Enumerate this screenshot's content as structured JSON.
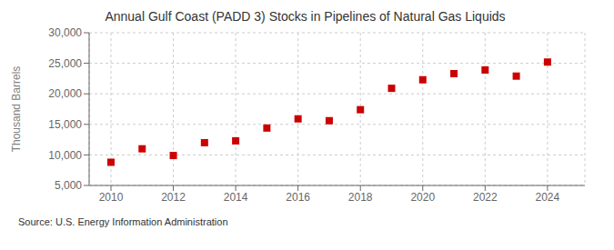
{
  "chart_data": {
    "type": "scatter",
    "title": "Annual Gulf Coast (PADD 3) Stocks in Pipelines of Natural Gas Liquids",
    "ylabel": "Thousand Barrels",
    "annotations": [
      "Source: U.S. Energy Information Administration"
    ],
    "x": [
      2010,
      2011,
      2012,
      2013,
      2014,
      2015,
      2016,
      2017,
      2018,
      2019,
      2020,
      2021,
      2022,
      2023,
      2024
    ],
    "values": [
      8800,
      11000,
      9900,
      12000,
      12300,
      14400,
      15900,
      15600,
      17400,
      20900,
      22300,
      23300,
      23900,
      22900,
      25200
    ],
    "color": "#cc0000",
    "marker": "square",
    "xlim": [
      2009.3,
      2025.2
    ],
    "xticks": [
      2010,
      2012,
      2014,
      2016,
      2018,
      2020,
      2022,
      2024
    ],
    "ylim": [
      5000,
      30000
    ],
    "yticks": [
      {
        "value": 5000,
        "label": "5,000"
      },
      {
        "value": 10000,
        "label": "10,000"
      },
      {
        "value": 15000,
        "label": "15,000"
      },
      {
        "value": 20000,
        "label": "20,000"
      },
      {
        "value": 25000,
        "label": "25,000"
      },
      {
        "value": 30000,
        "label": "30,000"
      }
    ],
    "grid": true
  }
}
